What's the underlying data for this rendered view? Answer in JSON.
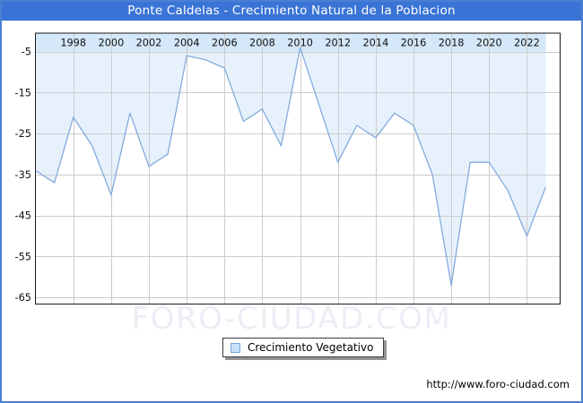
{
  "window": {
    "title": "Ponte Caldelas - Crecimiento Natural de la Poblacion"
  },
  "legend": {
    "label": "Crecimiento Vegetativo"
  },
  "watermark": "FORO-CIUDAD.COM",
  "footer": {
    "url": "http://www.foro-ciudad.com"
  },
  "colors": {
    "header_bg": "#3a74d6",
    "frame": "#4b7fd3",
    "plot_border": "#1a1a1a",
    "band": "#d5e8fa",
    "area_fill": "#e6f1fc",
    "line": "#84aadd",
    "grid": "#cccccc",
    "tick_text": "#111111",
    "legend_swatch_fill": "#c9dff7",
    "legend_swatch_border": "#7aa7dc",
    "watermark_text": "#ededf6"
  },
  "chart_data": {
    "type": "area",
    "title": "Ponte Caldelas - Crecimiento Natural de la Poblacion",
    "series_name": "Crecimiento Vegetativo",
    "x": [
      1996,
      1997,
      1998,
      1999,
      2000,
      2001,
      2002,
      2003,
      2004,
      2005,
      2006,
      2007,
      2008,
      2009,
      2010,
      2011,
      2012,
      2013,
      2014,
      2015,
      2016,
      2017,
      2018,
      2019,
      2020,
      2021,
      2022,
      2023
    ],
    "values": [
      -34,
      -37,
      -21,
      -28,
      -40,
      -20,
      -33,
      -30,
      -6,
      -7,
      -9,
      -22,
      -19,
      -28,
      -4,
      -18,
      -32,
      -23,
      -26,
      -20,
      -23,
      -35,
      -62,
      -32,
      -32,
      -39,
      -50,
      -38
    ],
    "x_ticks": [
      1998,
      2000,
      2002,
      2004,
      2006,
      2008,
      2010,
      2012,
      2014,
      2016,
      2018,
      2020,
      2022
    ],
    "y_ticks": [
      -5,
      -15,
      -25,
      -35,
      -45,
      -55,
      -65
    ],
    "xlim": [
      1996,
      2023
    ],
    "ylim": [
      -65,
      -5
    ],
    "grid": true,
    "fill_direction": "above-line-to-top",
    "legend_position": "bottom-center"
  }
}
